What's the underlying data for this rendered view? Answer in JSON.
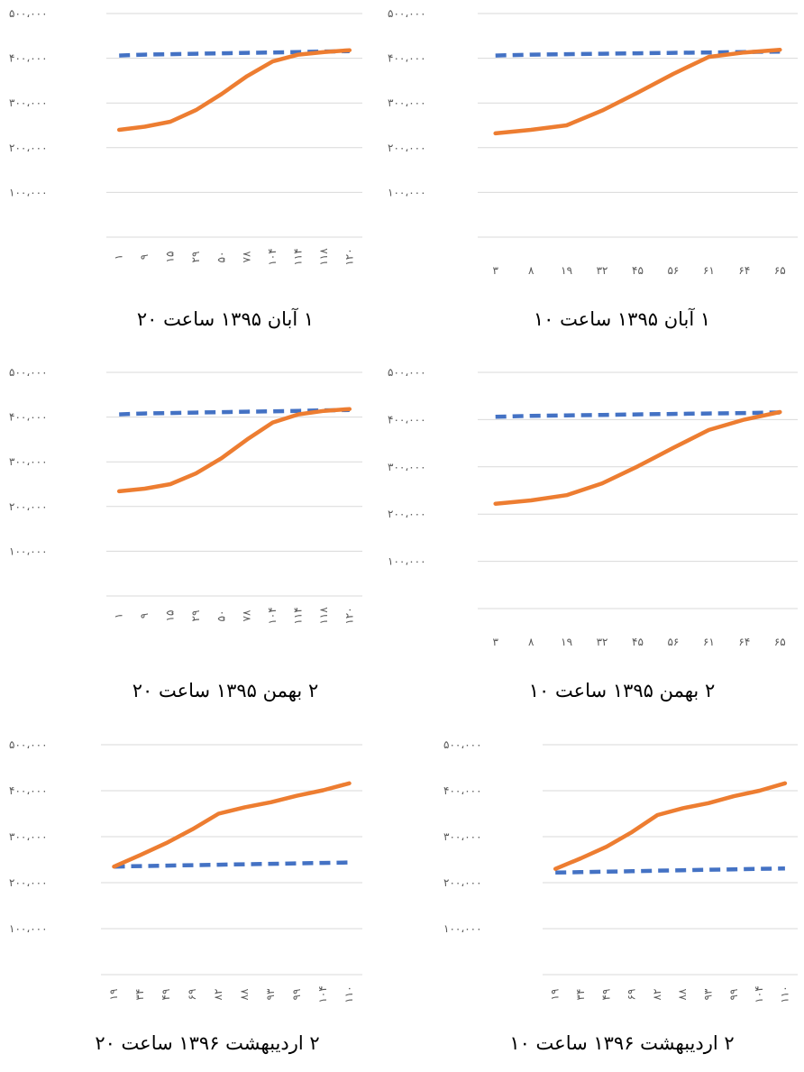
{
  "colors": {
    "series_target": "#4472c4",
    "series_actual": "#ed7d31",
    "grid": "#d9d9d9",
    "tick": "#595959"
  },
  "chart_data": [
    {
      "id": "c1",
      "type": "line",
      "title": "۱ آبان ۱۳۹۵ ساعت ۲۰",
      "ylim": [
        0,
        500000
      ],
      "ytick_labels": [
        "۵۰۰،۰۰۰",
        "۴۰۰،۰۰۰",
        "۳۰۰،۰۰۰",
        "۲۰۰،۰۰۰",
        "۱۰۰،۰۰۰",
        ""
      ],
      "categories": [
        "۱",
        "۹",
        "۱۵",
        "۲۹",
        "۵۰",
        "۷۸",
        "۱۰۴",
        "۱۱۴",
        "۱۱۸",
        "۱۲۰"
      ],
      "series": [
        {
          "style": "dashed",
          "color": "#4472c4",
          "values": [
            406000,
            408000,
            409000,
            410000,
            411000,
            412000,
            413000,
            414000,
            415000,
            416000
          ]
        },
        {
          "style": "solid",
          "color": "#ed7d31",
          "values": [
            240000,
            247000,
            258000,
            284000,
            320000,
            360000,
            393000,
            408000,
            414000,
            418000
          ]
        }
      ]
    },
    {
      "id": "c2",
      "type": "line",
      "title": "۱ آبان ۱۳۹۵ ساعت ۱۰",
      "ylim": [
        0,
        500000
      ],
      "ytick_labels": [
        "۵۰۰،۰۰۰",
        "۴۰۰،۰۰۰",
        "۳۰۰،۰۰۰",
        "۲۰۰،۰۰۰",
        "۱۰۰،۰۰۰",
        ""
      ],
      "categories": [
        "۳",
        "۸",
        "۱۹",
        "۳۲",
        "۴۵",
        "۵۶",
        "۶۱",
        "۶۴",
        "۶۵"
      ],
      "series": [
        {
          "style": "dashed",
          "color": "#4472c4",
          "values": [
            406000,
            408000,
            409000,
            410000,
            411000,
            412000,
            413000,
            414000,
            415000
          ]
        },
        {
          "style": "solid",
          "color": "#ed7d31",
          "values": [
            232000,
            240000,
            250000,
            283000,
            323000,
            365000,
            403000,
            413000,
            419000
          ]
        }
      ]
    },
    {
      "id": "c3",
      "type": "line",
      "title": "۲ بهمن ۱۳۹۵ ساعت ۲۰",
      "ylim": [
        0,
        500000
      ],
      "ytick_labels": [
        "۵۰۰،۰۰۰",
        "۴۰۰،۰۰۰",
        "۳۰۰،۰۰۰",
        "۲۰۰،۰۰۰",
        "۱۰۰،۰۰۰",
        ""
      ],
      "categories": [
        "۱",
        "۹",
        "۱۵",
        "۲۹",
        "۵۰",
        "۷۸",
        "۱۰۴",
        "۱۱۴",
        "۱۱۸",
        "۱۲۰"
      ],
      "series": [
        {
          "style": "dashed",
          "color": "#4472c4",
          "values": [
            406000,
            408000,
            409000,
            410000,
            411000,
            412000,
            413000,
            414000,
            415000,
            416000
          ]
        },
        {
          "style": "solid",
          "color": "#ed7d31",
          "values": [
            234000,
            240000,
            250000,
            274000,
            308000,
            350000,
            388000,
            406000,
            414000,
            418000
          ]
        }
      ]
    },
    {
      "id": "c4",
      "type": "line",
      "title": "۲ بهمن ۱۳۹۵ ساعت ۱۰",
      "ylim": [
        0,
        500000
      ],
      "ytick_labels": [
        "۵۰۰،۰۰۰",
        "۴۰۰،۰۰۰",
        "۳۰۰،۰۰۰",
        "۲۰۰،۰۰۰",
        "۱۰۰،۰۰۰",
        ""
      ],
      "categories": [
        "۳",
        "۸",
        "۱۹",
        "۳۲",
        "۴۵",
        "۵۶",
        "۶۱",
        "۶۴",
        "۶۵"
      ],
      "series": [
        {
          "style": "dashed",
          "color": "#4472c4",
          "values": [
            406000,
            408000,
            409000,
            410000,
            411000,
            412000,
            413000,
            414000,
            415000
          ]
        },
        {
          "style": "solid",
          "color": "#ed7d31",
          "values": [
            222000,
            229000,
            240000,
            265000,
            301000,
            340000,
            378000,
            400000,
            416000
          ]
        }
      ]
    },
    {
      "id": "c5",
      "type": "line",
      "title": "۲ اردیبهشت ۱۳۹۶ ساعت ۲۰",
      "ylim": [
        0,
        500000
      ],
      "ytick_labels": [
        "۵۰۰،۰۰۰",
        "۴۰۰،۰۰۰",
        "۳۰۰،۰۰۰",
        "۲۰۰،۰۰۰",
        "۱۰۰،۰۰۰",
        ""
      ],
      "categories": [
        "۱۹",
        "۳۴",
        "۴۹",
        "۶۹",
        "۸۲",
        "۸۸",
        "۹۳",
        "۹۹",
        "۱۰۴",
        "۱۱۰"
      ],
      "series": [
        {
          "style": "dashed",
          "color": "#4472c4",
          "values": [
            235000,
            236000,
            237000,
            238000,
            239000,
            240000,
            241000,
            242000,
            243000,
            244000
          ]
        },
        {
          "style": "solid",
          "color": "#ed7d31",
          "values": [
            235000,
            260000,
            286000,
            316000,
            350000,
            364000,
            375000,
            389000,
            401000,
            416000
          ]
        }
      ]
    },
    {
      "id": "c6",
      "type": "line",
      "title": "۲ اردیبهشت ۱۳۹۶ ساعت ۱۰",
      "ylim": [
        0,
        500000
      ],
      "ytick_labels": [
        "۵۰۰،۰۰۰",
        "۴۰۰،۰۰۰",
        "۳۰۰،۰۰۰",
        "۲۰۰،۰۰۰",
        "۱۰۰،۰۰۰",
        ""
      ],
      "categories": [
        "۱۹",
        "۳۴",
        "۴۹",
        "۶۹",
        "۸۲",
        "۸۸",
        "۹۳",
        "۹۹",
        "۱۰۴",
        "۱۱۰"
      ],
      "series": [
        {
          "style": "dashed",
          "color": "#4472c4",
          "values": [
            222000,
            223000,
            224000,
            225000,
            226000,
            227000,
            228000,
            229000,
            230000,
            231000
          ]
        },
        {
          "style": "solid",
          "color": "#ed7d31",
          "values": [
            230000,
            253000,
            278000,
            310000,
            347000,
            362000,
            373000,
            388000,
            400000,
            416000
          ]
        }
      ]
    }
  ]
}
